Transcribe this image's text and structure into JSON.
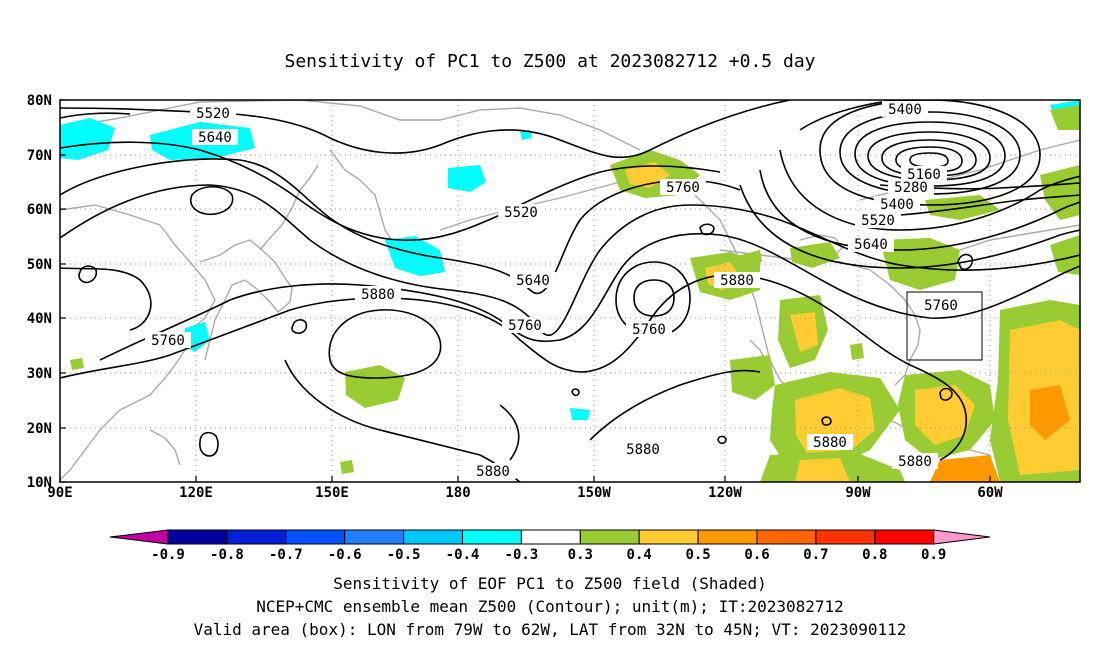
{
  "title": "Sensitivity of PC1 to Z500 at 2023082712 +0.5 day",
  "latitude_labels": [
    "80N",
    "70N",
    "60N",
    "50N",
    "40N",
    "30N",
    "20N",
    "10N"
  ],
  "longitude_labels": [
    "90E",
    "120E",
    "150E",
    "180",
    "150W",
    "120W",
    "90W",
    "60W"
  ],
  "contour_labels": [
    "5520",
    "5640",
    "5520",
    "5760",
    "5640",
    "5760",
    "5760",
    "5880",
    "5880",
    "5760",
    "5880",
    "5880",
    "5880",
    "5400",
    "5160",
    "5280",
    "5400",
    "5520",
    "5640",
    "5760",
    "5880"
  ],
  "colorbar": {
    "labels": [
      "-0.9",
      "-0.8",
      "-0.7",
      "-0.6",
      "-0.5",
      "-0.4",
      "-0.3",
      "0.3",
      "0.4",
      "0.5",
      "0.6",
      "0.7",
      "0.8",
      "0.9"
    ],
    "colors": [
      "#c000a0",
      "#0000a0",
      "#0020d8",
      "#0050ff",
      "#2080ff",
      "#00c8ff",
      "#00ffff",
      "#ffffff",
      "#99cc33",
      "#ffcc33",
      "#ff9900",
      "#ff6600",
      "#ff3300",
      "#ff0000",
      "#ff99cc"
    ]
  },
  "caption": {
    "line1": "Sensitivity of EOF PC1 to Z500 field (Shaded)",
    "line2": "NCEP+CMC ensemble mean Z500 (Contour); unit(m); IT:2023082712",
    "line3": "Valid area (box): LON from 79W to 62W, LAT from 32N to 45N; VT: 2023090112"
  }
}
